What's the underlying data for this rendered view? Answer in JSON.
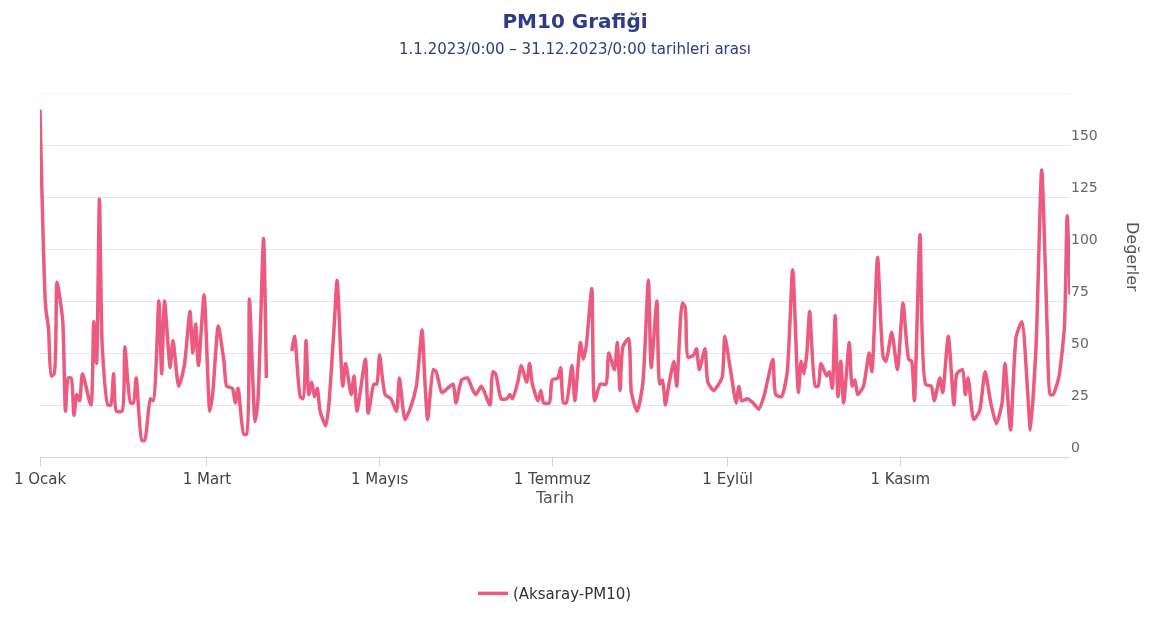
{
  "chart_data": {
    "type": "line",
    "title": "PM10 Grafiği",
    "subtitle": "1.1.2023/0:00 – 31.12.2023/0:00 tarihleri arası",
    "xlabel": "Tarih",
    "ylabel": "Değerler",
    "x": [
      "2023-01-01",
      "2023-01-03",
      "2023-01-04",
      "2023-01-05",
      "2023-01-06",
      "2023-01-07",
      "2023-01-09",
      "2023-01-10",
      "2023-01-11",
      "2023-01-12",
      "2023-01-13",
      "2023-01-14",
      "2023-01-15",
      "2023-01-16",
      "2023-01-19",
      "2023-01-20",
      "2023-01-21",
      "2023-01-22",
      "2023-01-23",
      "2023-01-25",
      "2023-01-26",
      "2023-01-27",
      "2023-01-28",
      "2023-01-30",
      "2023-01-31",
      "2023-02-02",
      "2023-02-03",
      "2023-02-04",
      "2023-02-06",
      "2023-02-07",
      "2023-02-09",
      "2023-02-10",
      "2023-02-12",
      "2023-02-13",
      "2023-02-14",
      "2023-02-16",
      "2023-02-17",
      "2023-02-19",
      "2023-02-21",
      "2023-02-23",
      "2023-02-24",
      "2023-02-25",
      "2023-02-26",
      "2023-02-28",
      "2023-03-02",
      "2023-03-03",
      "2023-03-05",
      "2023-03-07",
      "2023-03-08",
      "2023-03-10",
      "2023-03-11",
      "2023-03-12",
      "2023-03-14",
      "2023-03-15",
      "2023-03-16",
      "2023-03-18",
      "2023-03-19",
      "2023-03-21",
      "2023-03-22",
      "2023-03-25",
      "2023-03-31",
      "2023-04-01",
      "2023-04-03",
      "2023-04-04",
      "2023-04-05",
      "2023-04-06",
      "2023-04-07",
      "2023-04-08",
      "2023-04-09",
      "2023-04-10",
      "2023-04-12",
      "2023-04-13",
      "2023-04-15",
      "2023-04-16",
      "2023-04-18",
      "2023-04-19",
      "2023-04-21",
      "2023-04-22",
      "2023-04-23",
      "2023-04-26",
      "2023-04-27",
      "2023-04-29",
      "2023-04-30",
      "2023-05-01",
      "2023-05-03",
      "2023-05-05",
      "2023-05-07",
      "2023-05-08",
      "2023-05-10",
      "2023-05-12",
      "2023-05-14",
      "2023-05-16",
      "2023-05-17",
      "2023-05-18",
      "2023-05-20",
      "2023-05-21",
      "2023-05-23",
      "2023-05-25",
      "2023-05-27",
      "2023-05-28",
      "2023-05-30",
      "2023-06-01",
      "2023-06-03",
      "2023-06-04",
      "2023-06-06",
      "2023-06-09",
      "2023-06-10",
      "2023-06-11",
      "2023-06-13",
      "2023-06-15",
      "2023-06-16",
      "2023-06-17",
      "2023-06-19",
      "2023-06-20",
      "2023-06-22",
      "2023-06-23",
      "2023-06-24",
      "2023-06-26",
      "2023-06-27",
      "2023-06-28",
      "2023-06-30",
      "2023-07-01",
      "2023-07-03",
      "2023-07-04",
      "2023-07-05",
      "2023-07-06",
      "2023-07-08",
      "2023-07-09",
      "2023-07-11",
      "2023-07-12",
      "2023-07-13",
      "2023-07-15",
      "2023-07-16",
      "2023-07-18",
      "2023-07-20",
      "2023-07-21",
      "2023-07-23",
      "2023-07-24",
      "2023-07-25",
      "2023-07-26",
      "2023-07-28",
      "2023-07-29",
      "2023-07-31",
      "2023-08-02",
      "2023-08-04",
      "2023-08-05",
      "2023-08-07",
      "2023-08-08",
      "2023-08-09",
      "2023-08-10",
      "2023-08-11",
      "2023-08-13",
      "2023-08-14",
      "2023-08-16",
      "2023-08-17",
      "2023-08-18",
      "2023-08-20",
      "2023-08-21",
      "2023-08-22",
      "2023-08-24",
      "2023-08-25",
      "2023-08-27",
      "2023-08-30",
      "2023-08-31",
      "2023-09-02",
      "2023-09-04",
      "2023-09-05",
      "2023-09-06",
      "2023-09-08",
      "2023-09-10",
      "2023-09-12",
      "2023-09-14",
      "2023-09-17",
      "2023-09-18",
      "2023-09-20",
      "2023-09-22",
      "2023-09-24",
      "2023-09-26",
      "2023-09-27",
      "2023-09-28",
      "2023-09-29",
      "2023-09-30",
      "2023-10-02",
      "2023-10-03",
      "2023-10-04",
      "2023-10-06",
      "2023-10-07",
      "2023-10-08",
      "2023-10-09",
      "2023-10-10",
      "2023-10-11",
      "2023-10-12",
      "2023-10-14",
      "2023-10-15",
      "2023-10-16",
      "2023-10-17",
      "2023-10-19",
      "2023-10-21",
      "2023-10-22",
      "2023-10-24",
      "2023-10-26",
      "2023-10-27",
      "2023-10-29",
      "2023-10-31",
      "2023-11-02",
      "2023-11-04",
      "2023-11-05",
      "2023-11-06",
      "2023-11-08",
      "2023-11-10",
      "2023-11-12",
      "2023-11-13",
      "2023-11-15",
      "2023-11-16",
      "2023-11-18",
      "2023-11-20",
      "2023-11-21",
      "2023-11-23",
      "2023-11-24",
      "2023-11-25",
      "2023-11-27",
      "2023-11-29",
      "2023-12-01",
      "2023-12-03",
      "2023-12-05",
      "2023-12-07",
      "2023-12-08",
      "2023-12-10",
      "2023-12-12",
      "2023-12-14",
      "2023-12-16",
      "2023-12-17",
      "2023-12-19",
      "2023-12-21",
      "2023-12-23",
      "2023-12-24",
      "2023-12-25",
      "2023-12-27",
      "2023-12-29",
      "2023-12-30",
      "2023-12-31"
    ],
    "series": [
      {
        "name": "(Aksaray-PM10)",
        "color": "#ec5a80",
        "values": [
          167,
          72,
          62,
          39,
          40,
          84,
          66,
          22,
          38,
          38,
          20,
          30,
          27,
          40,
          25,
          65,
          45,
          124,
          53,
          25,
          25,
          40,
          22,
          22,
          53,
          26,
          26,
          38,
          8,
          8,
          28,
          27,
          75,
          40,
          75,
          43,
          56,
          34,
          44,
          70,
          50,
          64,
          44,
          78,
          22,
          30,
          63,
          46,
          34,
          33,
          26,
          33,
          11,
          11,
          76,
          17,
          27,
          105,
          38,
          null,
          51,
          58,
          29,
          28,
          56,
          30,
          36,
          29,
          33,
          22,
          15,
          24,
          64,
          85,
          34,
          45,
          30,
          39,
          22,
          47,
          21,
          35,
          35,
          49,
          30,
          28,
          22,
          38,
          18,
          24,
          34,
          61,
          37,
          18,
          42,
          41,
          31,
          33,
          35,
          26,
          37,
          38,
          32,
          30,
          34,
          25,
          41,
          40,
          28,
          28,
          30,
          28,
          37,
          44,
          36,
          45,
          35,
          27,
          32,
          26,
          26,
          37,
          38,
          43,
          26,
          26,
          44,
          27,
          55,
          47,
          53,
          81,
          27,
          35,
          35,
          50,
          42,
          55,
          32,
          53,
          57,
          31,
          22,
          35,
          85,
          43,
          75,
          35,
          37,
          25,
          33,
          46,
          34,
          74,
          72,
          48,
          49,
          52,
          42,
          52,
          36,
          32,
          38,
          58,
          42,
          26,
          34,
          27,
          28,
          26,
          23,
          30,
          47,
          30,
          29,
          40,
          90,
          31,
          46,
          40,
          50,
          70,
          34,
          34,
          45,
          39,
          41,
          33,
          68,
          29,
          46,
          26,
          55,
          34,
          37,
          30,
          34,
          50,
          41,
          96,
          48,
          46,
          60,
          42,
          74,
          47,
          46,
          27,
          107,
          35,
          34,
          27,
          38,
          31,
          58,
          25,
          40,
          42,
          30,
          38,
          18,
          22,
          41,
          26,
          16,
          26,
          45,
          13,
          58,
          65,
          32,
          13,
          53,
          138,
          59,
          30,
          30,
          38,
          62,
          116,
          78
        ]
      }
    ],
    "xlim": [
      "2023-01-01",
      "2023-12-31"
    ],
    "xticks": [
      {
        "value": "2023-01-01",
        "label": "1 Ocak"
      },
      {
        "value": "2023-03-01",
        "label": "1 Mart"
      },
      {
        "value": "2023-05-01",
        "label": "1 Mayıs"
      },
      {
        "value": "2023-07-01",
        "label": "1 Temmuz"
      },
      {
        "value": "2023-09-01",
        "label": "1 Eylül"
      },
      {
        "value": "2023-11-01",
        "label": "1 Kasım"
      }
    ],
    "ylim": [
      0,
      175
    ],
    "yticks": [
      0,
      25,
      50,
      75,
      100,
      125,
      150,
      {
        "value": 175,
        "label": null
      }
    ],
    "grid": "y",
    "legend": "bottom",
    "marker": "none",
    "line_style": "solid"
  }
}
